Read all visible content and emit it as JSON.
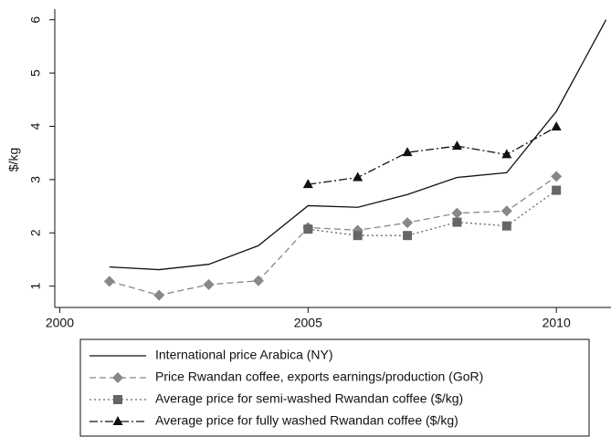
{
  "chart_data": {
    "type": "line",
    "y_label": "$/kg",
    "x": [
      2001,
      2002,
      2003,
      2004,
      2005,
      2006,
      2007,
      2008,
      2009,
      2010,
      2011
    ],
    "xlim": [
      1999.9,
      2011.1
    ],
    "xticks": [
      2000,
      2005,
      2010
    ],
    "ylim": [
      0.6,
      6.2
    ],
    "yticks": [
      1,
      2,
      3,
      4,
      5,
      6
    ],
    "series": [
      {
        "name": "International price Arabica (NY)",
        "color": "#111111",
        "dash": "solid",
        "marker": "none",
        "values": [
          1.36,
          1.31,
          1.41,
          1.76,
          2.51,
          2.48,
          2.72,
          3.04,
          3.13,
          4.28,
          6.0
        ]
      },
      {
        "name": "Price Rwandan coffee, exports earnings/production (GoR)",
        "color": "#888888",
        "dash": "dashed",
        "marker": "diamond",
        "values": [
          1.09,
          0.83,
          1.03,
          1.1,
          2.1,
          2.05,
          2.19,
          2.37,
          2.41,
          3.06,
          null
        ]
      },
      {
        "name": "Average price for semi-washed Rwandan coffee ($/kg)",
        "color": "#666666",
        "dash": "dotted",
        "marker": "square",
        "values": [
          null,
          null,
          null,
          null,
          2.07,
          1.95,
          1.95,
          2.2,
          2.13,
          2.8,
          null
        ]
      },
      {
        "name": "Average price for fully washed Rwandan coffee ($/kg)",
        "color": "#111111",
        "dash": "dashdot",
        "marker": "triangle",
        "values": [
          null,
          null,
          null,
          null,
          2.91,
          3.04,
          3.51,
          3.63,
          3.47,
          3.99,
          null
        ]
      }
    ]
  }
}
